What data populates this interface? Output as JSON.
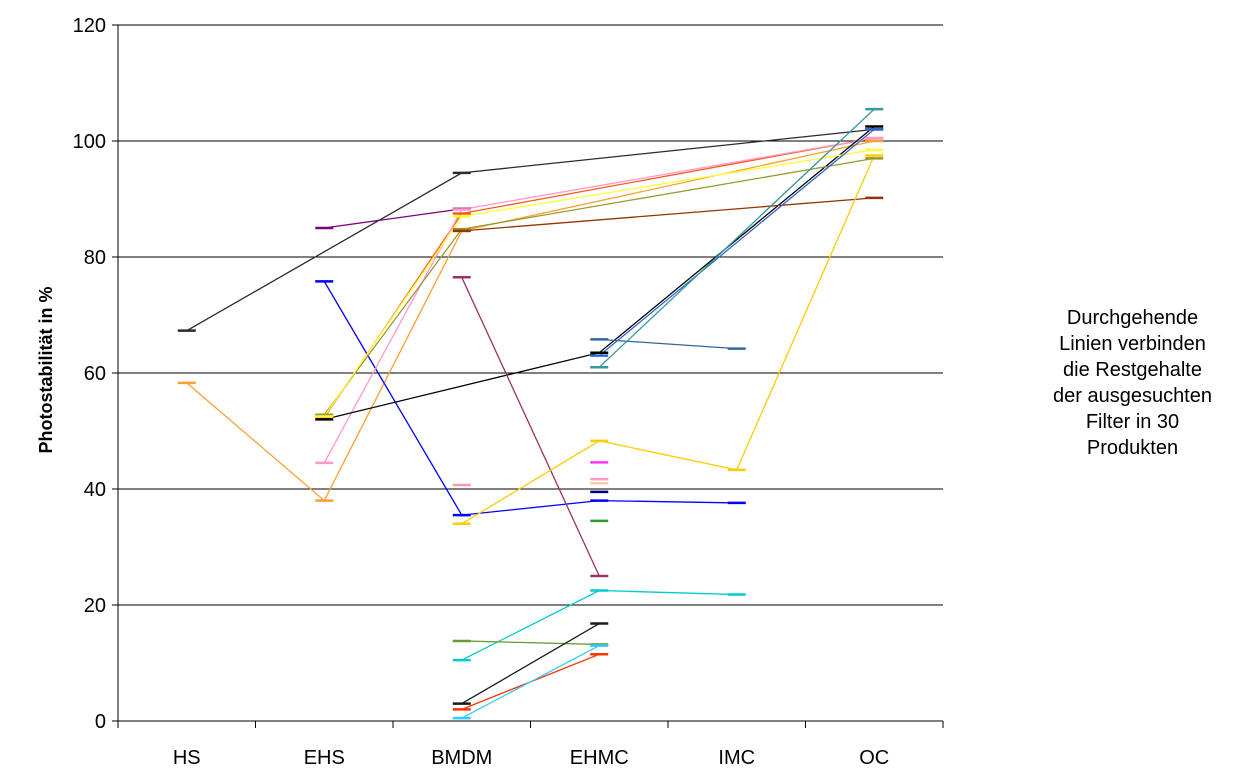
{
  "chart_data": {
    "type": "line",
    "title": "",
    "xlabel": "",
    "ylabel": "Photostabilität in %",
    "categories": [
      "HS",
      "EHS",
      "BMDM",
      "EHMC",
      "IMC",
      "OC"
    ],
    "ylim": [
      0,
      120
    ],
    "yticks": [
      0,
      20,
      40,
      60,
      80,
      100,
      120
    ],
    "grid": "horizontal",
    "legend": "none",
    "series": [
      {
        "color": "#2b2b2b",
        "values": [
          67.3,
          null,
          94.5,
          null,
          null,
          102.0
        ]
      },
      {
        "color": "#ff9f33",
        "values": [
          58.3,
          38.0,
          84.5,
          null,
          null,
          100.0
        ]
      },
      {
        "color": "#800080",
        "values": [
          null,
          85.0,
          88.3,
          null,
          null,
          null
        ]
      },
      {
        "color": "#0000ff",
        "values": [
          null,
          75.8,
          35.5,
          38.0,
          37.6,
          null
        ]
      },
      {
        "color": "#ff5a1e",
        "values": [
          null,
          52.3,
          87.5,
          null,
          null,
          100.5
        ]
      },
      {
        "color": "#ff99cc",
        "values": [
          null,
          44.5,
          88.2,
          null,
          null,
          100.5
        ]
      },
      {
        "color": "#000000",
        "values": [
          null,
          52.0,
          null,
          63.5,
          null,
          102.5
        ]
      },
      {
        "color": "#999933",
        "values": [
          null,
          52.8,
          84.8,
          null,
          null,
          97.0
        ]
      },
      {
        "color": "#ffff33",
        "values": [
          null,
          52.5,
          87.0,
          null,
          null,
          98.5
        ]
      },
      {
        "color": "#993300",
        "values": [
          null,
          null,
          84.5,
          null,
          null,
          90.2
        ]
      },
      {
        "color": "#993366",
        "values": [
          null,
          null,
          76.5,
          25.0,
          null,
          null
        ]
      },
      {
        "color": "#ffcc00",
        "values": [
          null,
          null,
          34.0,
          48.3,
          43.3,
          97.5
        ]
      },
      {
        "color": "#00cccc",
        "values": [
          null,
          null,
          10.5,
          22.5,
          21.8,
          null
        ]
      },
      {
        "color": "#669933",
        "values": [
          null,
          null,
          13.8,
          13.2,
          null,
          null
        ]
      },
      {
        "color": "#1a1a1a",
        "values": [
          null,
          null,
          3.0,
          16.8,
          null,
          null
        ]
      },
      {
        "color": "#ff3300",
        "values": [
          null,
          null,
          2.0,
          11.5,
          null,
          null
        ]
      },
      {
        "color": "#33ccff",
        "values": [
          null,
          null,
          0.5,
          13.0,
          null,
          null
        ]
      },
      {
        "color": "#336699",
        "values": [
          null,
          null,
          null,
          65.8,
          64.2,
          null
        ]
      },
      {
        "color": "#3366cc",
        "values": [
          null,
          null,
          null,
          63.0,
          null,
          102.0
        ]
      },
      {
        "color": "#339999",
        "values": [
          null,
          null,
          null,
          61.0,
          null,
          105.5
        ]
      }
    ],
    "markers": [
      {
        "category": "BMDM",
        "value": 40.7,
        "color": "#ff99aa"
      },
      {
        "category": "EHMC",
        "value": 44.6,
        "color": "#ff33ff"
      },
      {
        "category": "EHMC",
        "value": 41.7,
        "color": "#ff99cc"
      },
      {
        "category": "EHMC",
        "value": 41.0,
        "color": "#ffcc99"
      },
      {
        "category": "EHMC",
        "value": 39.5,
        "color": "#000080"
      },
      {
        "category": "EHMC",
        "value": 34.5,
        "color": "#339933"
      }
    ]
  },
  "annotation": {
    "lines": [
      "Durchgehende",
      "Linien verbinden",
      "die Restgehalte",
      "der ausgesuchten",
      "Filter in 30",
      "Produkten"
    ]
  }
}
